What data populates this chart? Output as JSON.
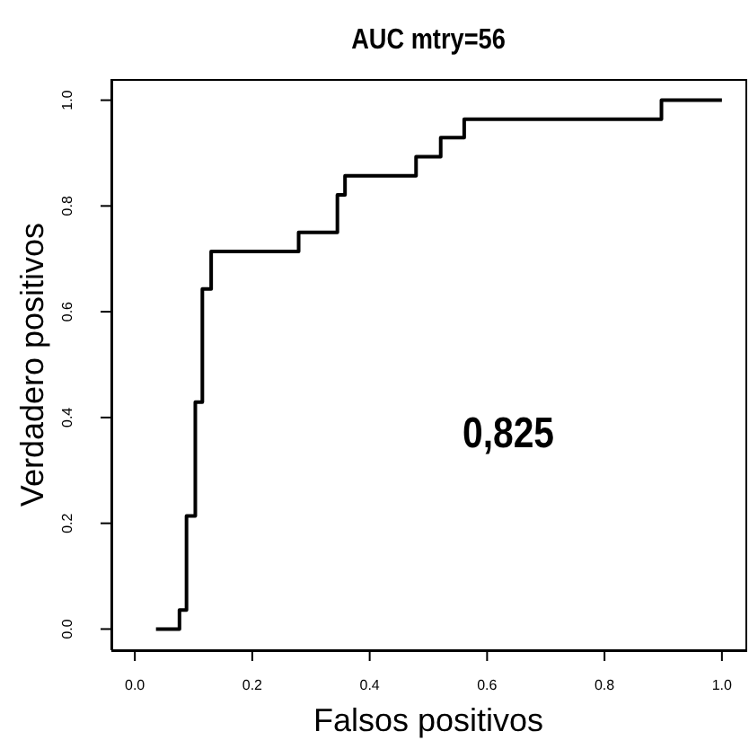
{
  "chart_data": {
    "type": "step",
    "title": "AUC mtry=56",
    "xlabel": "Falsos positivos",
    "ylabel": "Verdadero positivos",
    "annotations": [
      "0,825"
    ],
    "x": [
      0.036,
      0.076,
      0.088,
      0.103,
      0.115,
      0.13,
      0.279,
      0.345,
      0.358,
      0.479,
      0.521,
      0.561,
      0.897,
      1.0
    ],
    "series": [
      {
        "color": "#000000",
        "values": [
          0,
          0.036,
          0.214,
          0.429,
          0.643,
          0.714,
          0.75,
          0.821,
          0.857,
          0.893,
          0.929,
          0.964,
          1.0,
          1.0
        ]
      }
    ],
    "xlim": [
      -0.04,
      1.04
    ],
    "ylim": [
      -0.04,
      1.04
    ],
    "xticks": [
      {
        "value": 0,
        "label": "0.0"
      },
      0.2,
      0.4,
      0.6,
      0.8,
      {
        "value": 1,
        "label": "1.0"
      }
    ],
    "yticks": [
      {
        "value": 0,
        "label": "0.0"
      },
      0.2,
      0.4,
      0.6,
      0.8,
      {
        "value": 1,
        "label": "1.0"
      }
    ],
    "grid": false,
    "legend": false
  }
}
